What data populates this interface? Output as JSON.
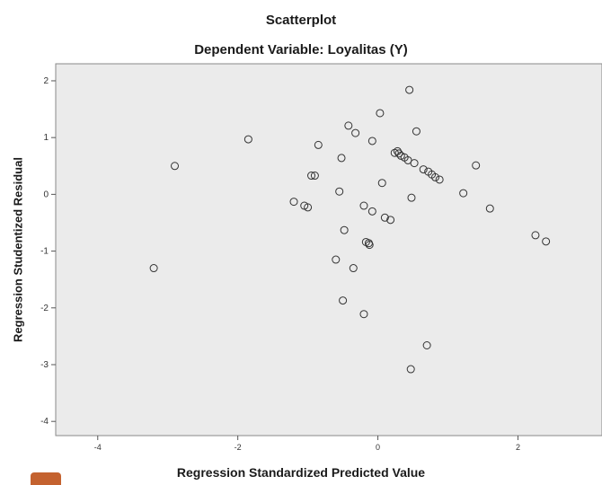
{
  "chart_data": {
    "type": "scatter",
    "title": "Scatterplot",
    "subtitle": "Dependent Variable: Loyalitas (Y)",
    "xlabel": "Regression Standardized Predicted Value",
    "ylabel": "Regression Studentized Residual",
    "xlim": [
      -4.6,
      3.2
    ],
    "ylim": [
      -4.25,
      2.3
    ],
    "xticks": [
      -4,
      -2,
      0,
      2
    ],
    "xtick_labels": [
      "-4",
      "-2",
      "0",
      "2"
    ],
    "yticks": [
      2,
      1,
      0,
      -1,
      -2,
      -3,
      -4
    ],
    "ytick_labels": [
      "2",
      "1",
      "0",
      "-1",
      "-2",
      "-3",
      "-4"
    ],
    "grid": false,
    "legend": "none",
    "colors": {
      "plot_bg": "#ebebeb",
      "marker": "#333333"
    },
    "series": [
      {
        "marker": "open-circle",
        "points": [
          [
            -3.2,
            -1.3
          ],
          [
            -2.9,
            0.5
          ],
          [
            -1.85,
            0.97
          ],
          [
            -1.2,
            -0.13
          ],
          [
            -1.05,
            -0.2
          ],
          [
            -1.0,
            -0.23
          ],
          [
            -0.95,
            0.33
          ],
          [
            -0.9,
            0.33
          ],
          [
            -0.85,
            0.87
          ],
          [
            -0.6,
            -1.15
          ],
          [
            -0.55,
            0.05
          ],
          [
            -0.52,
            0.64
          ],
          [
            -0.5,
            -1.87
          ],
          [
            -0.48,
            -0.63
          ],
          [
            -0.42,
            1.21
          ],
          [
            -0.35,
            -1.3
          ],
          [
            -0.32,
            1.08
          ],
          [
            -0.2,
            -0.2
          ],
          [
            -0.2,
            -2.11
          ],
          [
            -0.17,
            -0.84
          ],
          [
            -0.13,
            -0.86
          ],
          [
            -0.12,
            -0.89
          ],
          [
            -0.08,
            -0.3
          ],
          [
            -0.08,
            0.94
          ],
          [
            0.03,
            1.43
          ],
          [
            0.06,
            0.2
          ],
          [
            0.1,
            -0.41
          ],
          [
            0.18,
            -0.45
          ],
          [
            0.24,
            0.73
          ],
          [
            0.28,
            0.76
          ],
          [
            0.3,
            0.72
          ],
          [
            0.33,
            0.68
          ],
          [
            0.38,
            0.65
          ],
          [
            0.43,
            0.6
          ],
          [
            0.45,
            1.84
          ],
          [
            0.47,
            -3.08
          ],
          [
            0.48,
            -0.06
          ],
          [
            0.52,
            0.55
          ],
          [
            0.55,
            1.11
          ],
          [
            0.65,
            0.44
          ],
          [
            0.7,
            -2.66
          ],
          [
            0.72,
            0.4
          ],
          [
            0.77,
            0.35
          ],
          [
            0.82,
            0.3
          ],
          [
            0.88,
            0.26
          ],
          [
            1.22,
            0.02
          ],
          [
            1.4,
            0.51
          ],
          [
            1.6,
            -0.25
          ],
          [
            2.25,
            -0.72
          ],
          [
            2.4,
            -0.83
          ]
        ]
      }
    ]
  }
}
